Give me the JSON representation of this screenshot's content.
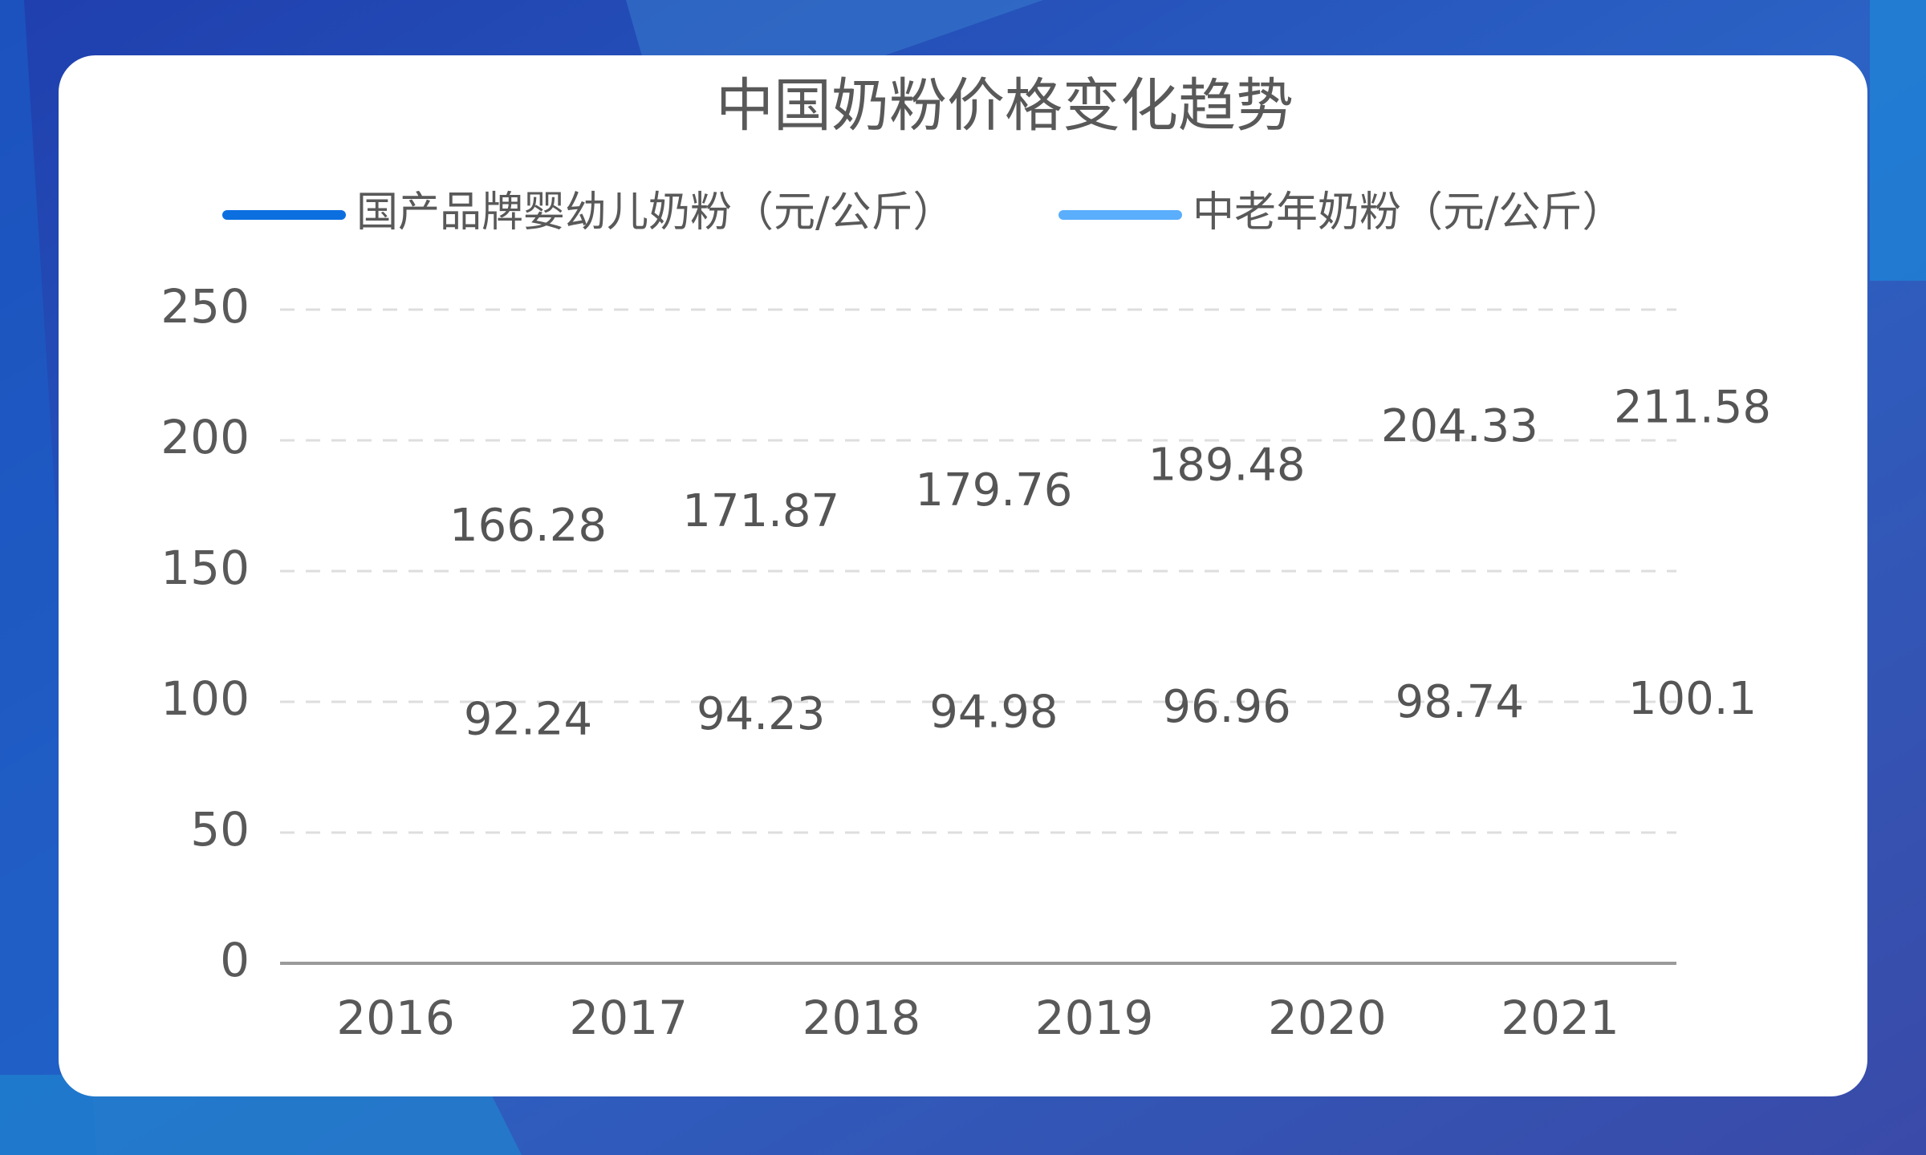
{
  "chart_data": {
    "type": "line",
    "title": "中国奶粉价格变化趋势",
    "categories": [
      "2016",
      "2017",
      "2018",
      "2019",
      "2020",
      "2021"
    ],
    "series": [
      {
        "name": "国产品牌婴幼儿奶粉（元/公斤）",
        "color": "#0b6fe0",
        "values": [
          166.28,
          171.87,
          179.76,
          189.48,
          204.33,
          211.58
        ]
      },
      {
        "name": "中老年奶粉（元/公斤）",
        "color": "#5aaefc",
        "values": [
          92.24,
          94.23,
          94.98,
          96.96,
          98.74,
          100.1
        ]
      }
    ],
    "ylim": [
      0,
      250
    ],
    "yticks": [
      0,
      50,
      100,
      150,
      200,
      250
    ],
    "grid": true,
    "legend": "top"
  }
}
